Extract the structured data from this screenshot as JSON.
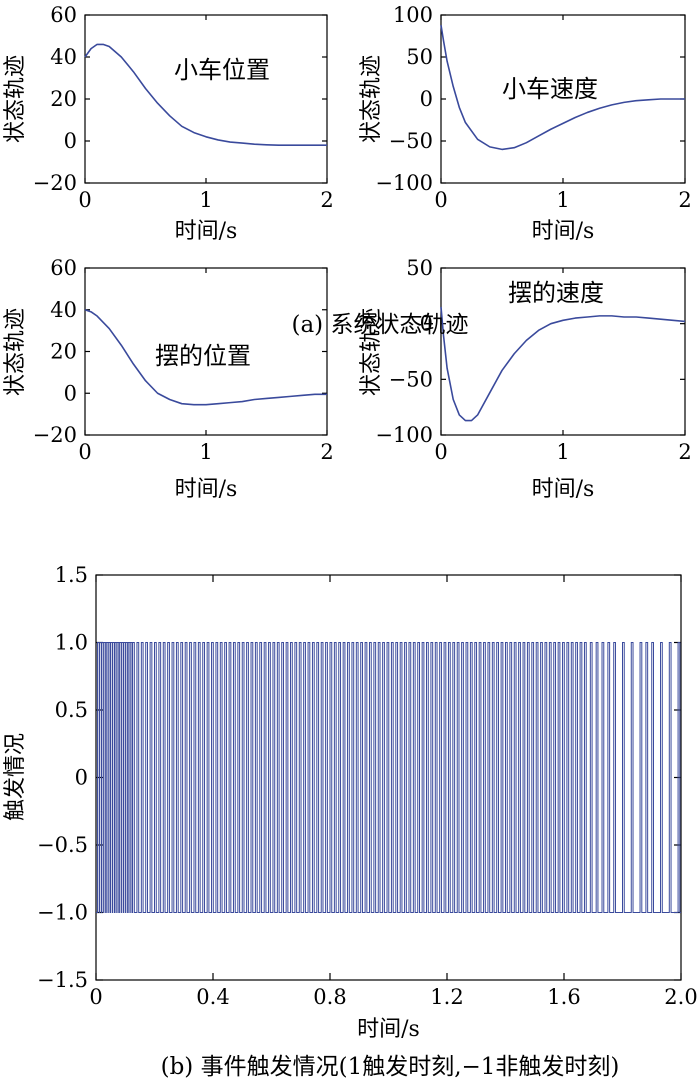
{
  "chart_data": [
    {
      "type": "line",
      "annotation": "小车位置",
      "xlabel": "时间/s",
      "ylabel": "状态轨迹",
      "xlim": [
        0,
        2
      ],
      "ylim": [
        -20,
        60
      ],
      "x_ticks": [
        "0",
        "1",
        "2"
      ],
      "y_ticks": [
        "60",
        "40",
        "20",
        "0",
        "−20"
      ],
      "x_tick_values": [
        0,
        1,
        2
      ],
      "y_tick_values": [
        60,
        40,
        20,
        0,
        -20
      ],
      "series": [
        {
          "x": [
            0,
            0.05,
            0.1,
            0.15,
            0.2,
            0.3,
            0.4,
            0.5,
            0.6,
            0.7,
            0.8,
            0.9,
            1.0,
            1.1,
            1.2,
            1.3,
            1.4,
            1.5,
            1.6,
            1.7,
            1.8,
            1.9,
            2.0
          ],
          "y": [
            40,
            44,
            46,
            46,
            45,
            40,
            33,
            25,
            18,
            12,
            7,
            4,
            2,
            0.5,
            -0.5,
            -1,
            -1.5,
            -1.8,
            -2,
            -2,
            -2,
            -2,
            -2
          ]
        }
      ]
    },
    {
      "type": "line",
      "annotation": "小车速度",
      "xlabel": "时间/s",
      "ylabel": "状态轨迹",
      "xlim": [
        0,
        2
      ],
      "ylim": [
        -100,
        100
      ],
      "x_ticks": [
        "0",
        "1",
        "2"
      ],
      "y_ticks": [
        "100",
        "50",
        "0",
        "−50",
        "−100"
      ],
      "x_tick_values": [
        0,
        1,
        2
      ],
      "y_tick_values": [
        100,
        50,
        0,
        -50,
        -100
      ],
      "series": [
        {
          "x": [
            0,
            0.02,
            0.05,
            0.1,
            0.15,
            0.2,
            0.3,
            0.4,
            0.5,
            0.6,
            0.7,
            0.8,
            0.9,
            1.0,
            1.1,
            1.2,
            1.3,
            1.4,
            1.5,
            1.6,
            1.7,
            1.8,
            1.9,
            2.0
          ],
          "y": [
            88,
            70,
            45,
            15,
            -10,
            -28,
            -48,
            -57,
            -60,
            -58,
            -52,
            -44,
            -36,
            -29,
            -22,
            -16,
            -11,
            -7,
            -4,
            -2,
            -1,
            0,
            0,
            0
          ]
        }
      ]
    },
    {
      "type": "line",
      "annotation": "摆的位置",
      "xlabel": "时间/s",
      "ylabel": "状态轨迹",
      "xlim": [
        0,
        2
      ],
      "ylim": [
        -20,
        60
      ],
      "x_ticks": [
        "0",
        "1",
        "2"
      ],
      "y_ticks": [
        "60",
        "40",
        "20",
        "0",
        "−20"
      ],
      "x_tick_values": [
        0,
        1,
        2
      ],
      "y_tick_values": [
        60,
        40,
        20,
        0,
        -20
      ],
      "series": [
        {
          "x": [
            0,
            0.05,
            0.1,
            0.2,
            0.3,
            0.4,
            0.5,
            0.6,
            0.7,
            0.8,
            0.9,
            1.0,
            1.1,
            1.2,
            1.3,
            1.4,
            1.5,
            1.6,
            1.7,
            1.8,
            1.9,
            2.0
          ],
          "y": [
            40,
            39,
            37,
            31,
            23,
            14,
            6,
            0,
            -3,
            -5,
            -5.5,
            -5.5,
            -5,
            -4.5,
            -4,
            -3,
            -2.5,
            -2,
            -1.5,
            -1,
            -0.5,
            -0.5
          ]
        }
      ]
    },
    {
      "type": "line",
      "annotation": "摆的速度",
      "xlabel": "时间/s",
      "ylabel": "状态轨迹",
      "xlim": [
        0,
        2
      ],
      "ylim": [
        -100,
        50
      ],
      "x_ticks": [
        "0",
        "1",
        "2"
      ],
      "y_ticks": [
        "50",
        "0",
        "−50",
        "−100"
      ],
      "x_tick_values": [
        0,
        1,
        2
      ],
      "y_tick_values": [
        50,
        0,
        -50,
        -100
      ],
      "series": [
        {
          "x": [
            0,
            0.02,
            0.05,
            0.1,
            0.15,
            0.2,
            0.25,
            0.3,
            0.4,
            0.5,
            0.6,
            0.7,
            0.8,
            0.9,
            1.0,
            1.1,
            1.2,
            1.3,
            1.4,
            1.5,
            1.6,
            1.7,
            1.8,
            1.9,
            2.0
          ],
          "y": [
            15,
            -10,
            -40,
            -68,
            -82,
            -87,
            -87,
            -82,
            -62,
            -42,
            -27,
            -15,
            -6,
            0,
            3,
            5,
            6,
            7,
            7,
            6,
            6,
            5,
            4,
            3,
            2
          ]
        }
      ]
    },
    {
      "type": "line",
      "xlabel": "时间/s",
      "ylabel": "触发情况",
      "xlim": [
        0,
        2
      ],
      "ylim": [
        -1.5,
        1.5
      ],
      "x_ticks": [
        "0",
        "0.4",
        "0.8",
        "1.2",
        "1.6",
        "2.0"
      ],
      "y_ticks": [
        "1.5",
        "1.0",
        "0.5",
        "0",
        "−0.5",
        "−1.0",
        "−1.5"
      ],
      "x_tick_values": [
        0,
        0.4,
        0.8,
        1.2,
        1.6,
        2.0
      ],
      "y_tick_values": [
        1.5,
        1.0,
        0.5,
        0,
        -0.5,
        -1.0,
        -1.5
      ],
      "trigger_times": [
        0.005,
        0.012,
        0.02,
        0.027,
        0.035,
        0.042,
        0.05,
        0.057,
        0.065,
        0.072,
        0.08,
        0.087,
        0.095,
        0.102,
        0.11,
        0.117,
        0.125,
        0.14,
        0.155,
        0.17,
        0.185,
        0.2,
        0.215,
        0.23,
        0.245,
        0.26,
        0.275,
        0.29,
        0.305,
        0.32,
        0.335,
        0.35,
        0.365,
        0.38,
        0.395,
        0.41,
        0.425,
        0.44,
        0.455,
        0.47,
        0.485,
        0.5,
        0.515,
        0.53,
        0.545,
        0.56,
        0.575,
        0.59,
        0.605,
        0.62,
        0.635,
        0.65,
        0.665,
        0.68,
        0.695,
        0.71,
        0.725,
        0.74,
        0.755,
        0.77,
        0.785,
        0.8,
        0.815,
        0.83,
        0.845,
        0.86,
        0.875,
        0.89,
        0.905,
        0.92,
        0.935,
        0.95,
        0.965,
        0.98,
        0.995,
        1.01,
        1.025,
        1.04,
        1.055,
        1.07,
        1.085,
        1.1,
        1.115,
        1.13,
        1.145,
        1.16,
        1.175,
        1.19,
        1.205,
        1.22,
        1.235,
        1.25,
        1.265,
        1.28,
        1.295,
        1.31,
        1.325,
        1.34,
        1.355,
        1.37,
        1.385,
        1.4,
        1.415,
        1.43,
        1.445,
        1.46,
        1.475,
        1.49,
        1.505,
        1.52,
        1.535,
        1.55,
        1.565,
        1.58,
        1.595,
        1.61,
        1.625,
        1.64,
        1.655,
        1.67,
        1.69,
        1.71,
        1.73,
        1.75,
        1.77,
        1.8,
        1.83,
        1.86,
        1.88,
        1.9,
        1.93,
        1.96,
        1.99
      ],
      "pulse_width": 0.006,
      "value_triggered": 1,
      "value_not_triggered": -1
    }
  ],
  "captions": {
    "a": "(a) 系统状态轨迹",
    "b": "(b) 事件触发情况(1触发时刻,−1非触发时刻)"
  },
  "colors": {
    "line": "#3a4a9c",
    "axis": "#000000"
  }
}
